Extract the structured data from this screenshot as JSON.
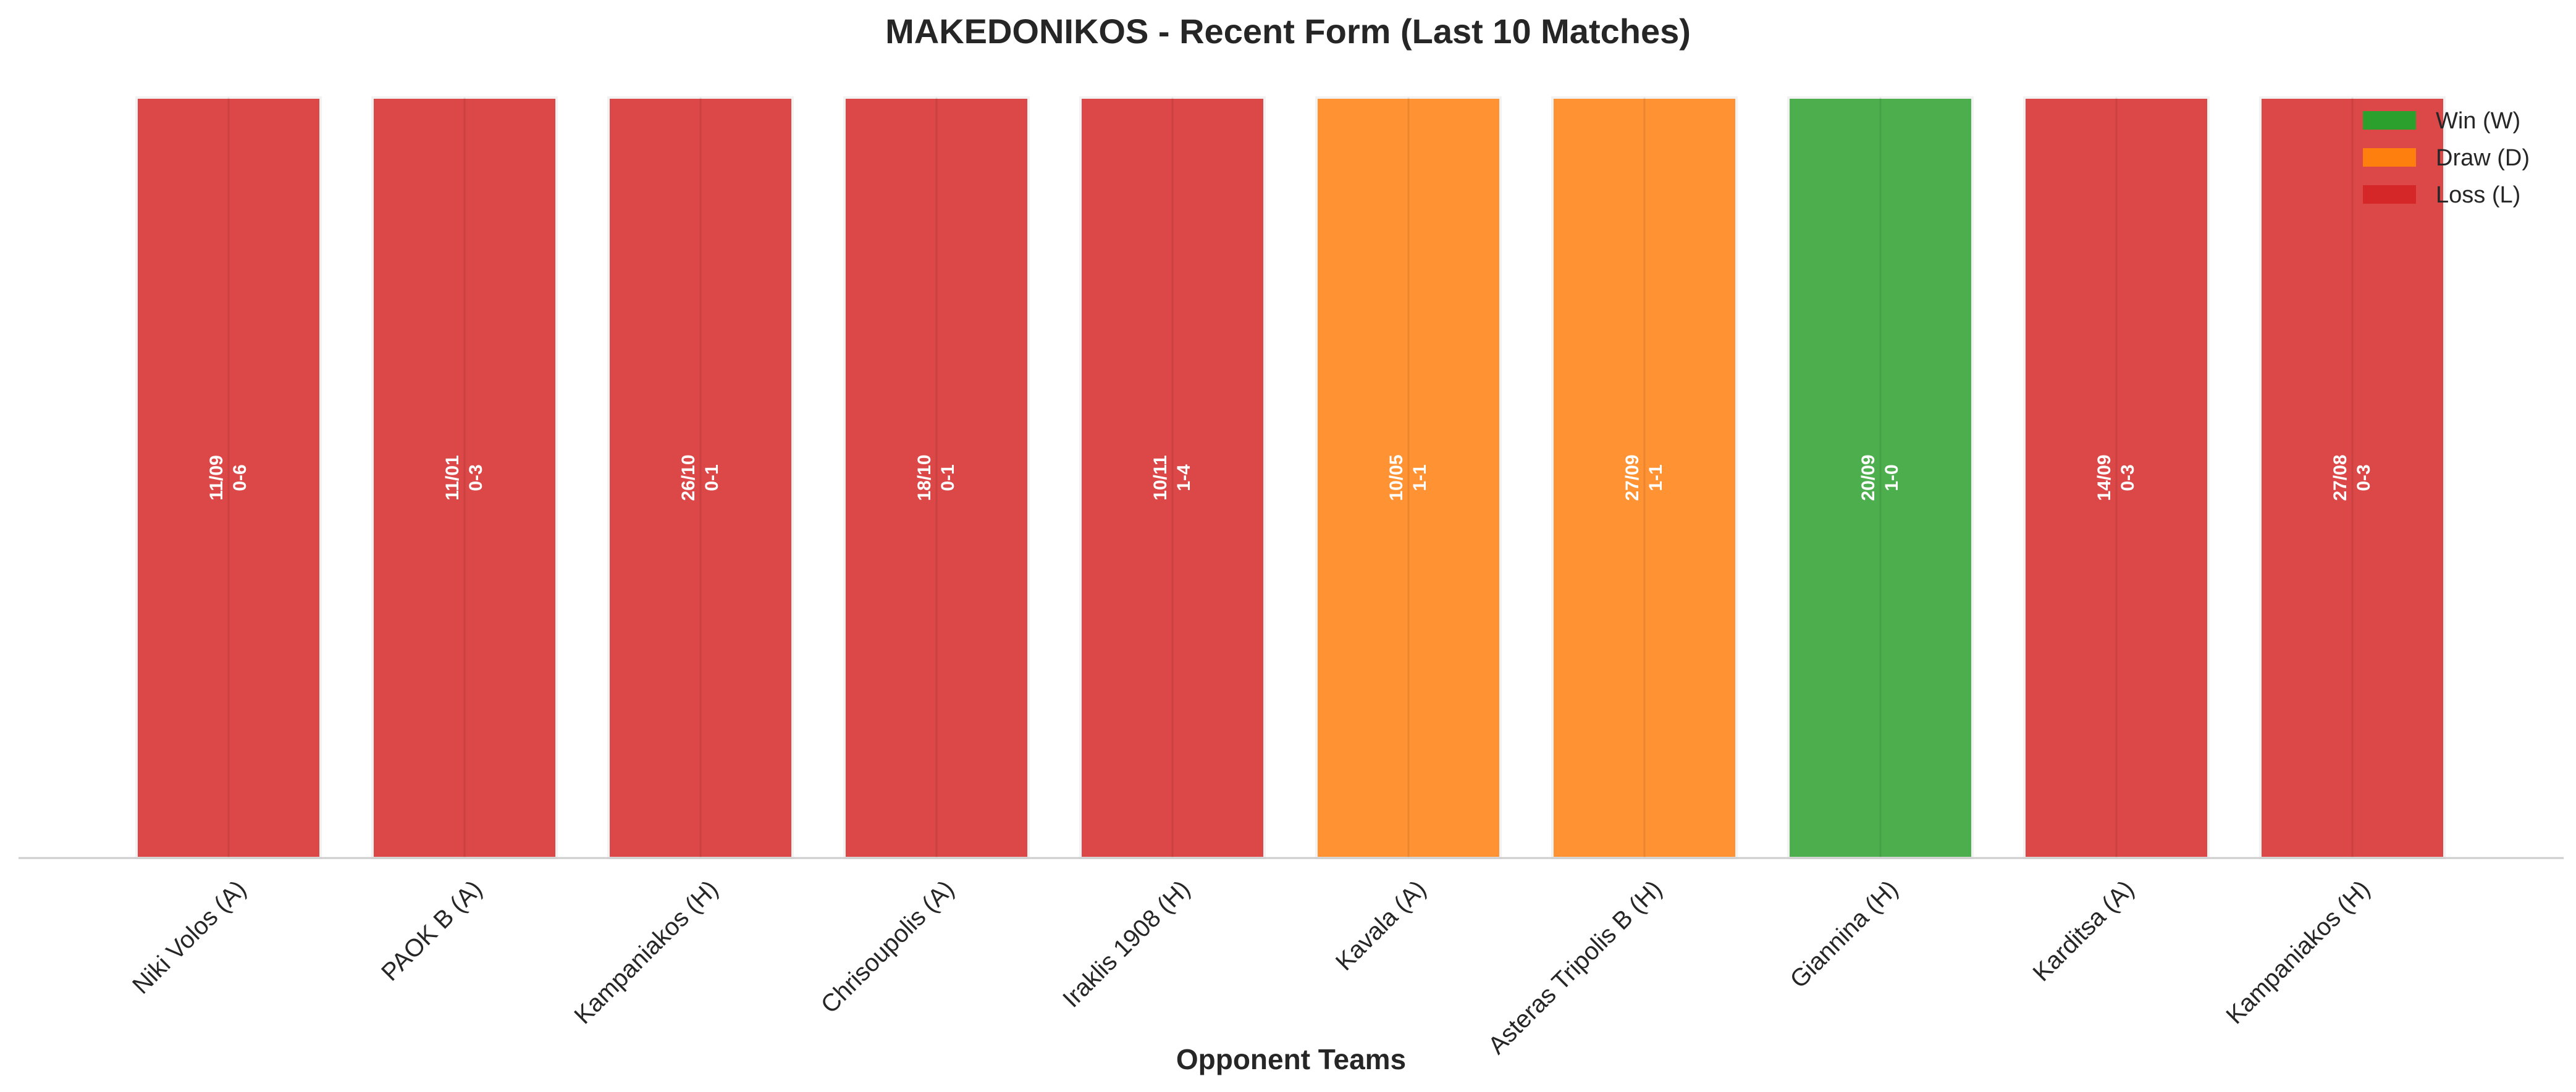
{
  "chart_data": {
    "type": "bar",
    "title": "MAKEDONIKOS - Recent Form (Last 10 Matches)",
    "xlabel": "Opponent Teams",
    "ylabel": "",
    "grid": false,
    "legend_position": "top-right",
    "categories": [
      "Niki Volos (A)",
      "PAOK B (A)",
      "Kampaniakos (H)",
      "Chrisoupolis (A)",
      "Iraklis 1908 (H)",
      "Kavala (A)",
      "Asteras Tripolis B (H)",
      "Giannina (H)",
      "Karditsa (A)",
      "Kampaniakos (H)"
    ],
    "values": [
      1,
      1,
      1,
      1,
      1,
      1,
      1,
      1,
      1,
      1
    ],
    "results": [
      "L",
      "L",
      "L",
      "L",
      "L",
      "D",
      "D",
      "W",
      "L",
      "L"
    ],
    "dates": [
      "11/09",
      "11/01",
      "26/10",
      "18/10",
      "10/11",
      "10/05",
      "27/09",
      "20/09",
      "14/09",
      "27/08"
    ],
    "scores": [
      "0-6",
      "0-3",
      "0-1",
      "0-1",
      "1-4",
      "1-1",
      "1-1",
      "1-0",
      "0-3",
      "0-3"
    ],
    "legend": [
      {
        "key": "W",
        "label": "Win (W)",
        "color": "#2ca02c"
      },
      {
        "key": "D",
        "label": "Draw (D)",
        "color": "#ff7f0e"
      },
      {
        "key": "L",
        "label": "Loss (L)",
        "color": "#d62728"
      }
    ],
    "bar_colors": {
      "W": "#4dae4d",
      "D": "#ff9232",
      "L": "#dc4747"
    }
  }
}
